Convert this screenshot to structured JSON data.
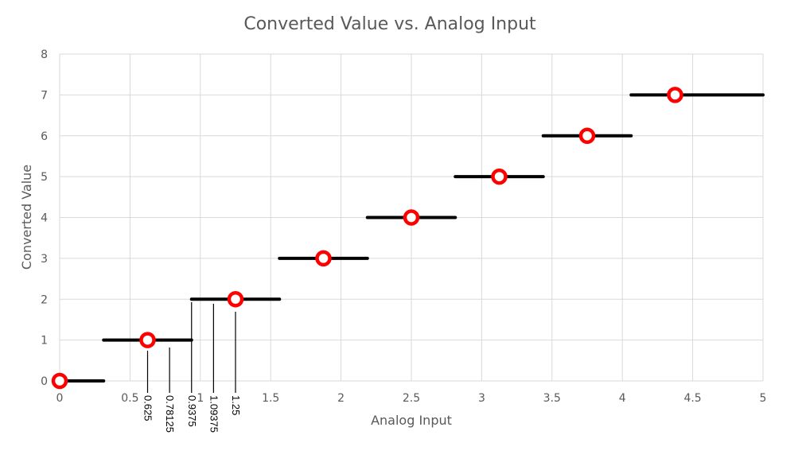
{
  "chart_data": {
    "type": "scatter",
    "title": "Converted Value vs. Analog Input",
    "xlabel": "Analog Input",
    "ylabel": "Converted Value",
    "xlim": [
      0,
      5
    ],
    "ylim": [
      0,
      8
    ],
    "x_ticks": [
      "0",
      "0.5",
      "1",
      "1.5",
      "2",
      "2.5",
      "3",
      "3.5",
      "4",
      "4.5",
      "5"
    ],
    "y_ticks": [
      "0",
      "1",
      "2",
      "3",
      "4",
      "5",
      "6",
      "7",
      "8"
    ],
    "grid": true,
    "points": [
      {
        "x": 0,
        "y": 0
      },
      {
        "x": 0.625,
        "y": 1
      },
      {
        "x": 1.25,
        "y": 2
      },
      {
        "x": 1.875,
        "y": 3
      },
      {
        "x": 2.5,
        "y": 4
      },
      {
        "x": 3.125,
        "y": 5
      },
      {
        "x": 3.75,
        "y": 6
      },
      {
        "x": 4.375,
        "y": 7
      }
    ],
    "steps": [
      {
        "x_start": 0,
        "x_end": 0.3125,
        "y": 0
      },
      {
        "x_start": 0.3125,
        "x_end": 0.9375,
        "y": 1
      },
      {
        "x_start": 0.9375,
        "x_end": 1.5625,
        "y": 2
      },
      {
        "x_start": 1.5625,
        "x_end": 2.1875,
        "y": 3
      },
      {
        "x_start": 2.1875,
        "x_end": 2.8125,
        "y": 4
      },
      {
        "x_start": 2.8125,
        "x_end": 3.4375,
        "y": 5
      },
      {
        "x_start": 3.4375,
        "x_end": 4.0625,
        "y": 6
      },
      {
        "x_start": 4.0625,
        "x_end": 5,
        "y": 7
      }
    ],
    "annotations": [
      {
        "x": 0.625,
        "label": "0.625"
      },
      {
        "x": 0.78125,
        "label": "0.78125"
      },
      {
        "x": 0.9375,
        "label": "0.9375"
      },
      {
        "x": 1.09375,
        "label": "1.09375"
      },
      {
        "x": 1.25,
        "label": "1.25"
      }
    ],
    "colors": {
      "marker_stroke": "#ff0000",
      "marker_fill": "#ffffff",
      "step": "#000000",
      "grid": "#d9d9d9",
      "text": "#595959"
    }
  }
}
